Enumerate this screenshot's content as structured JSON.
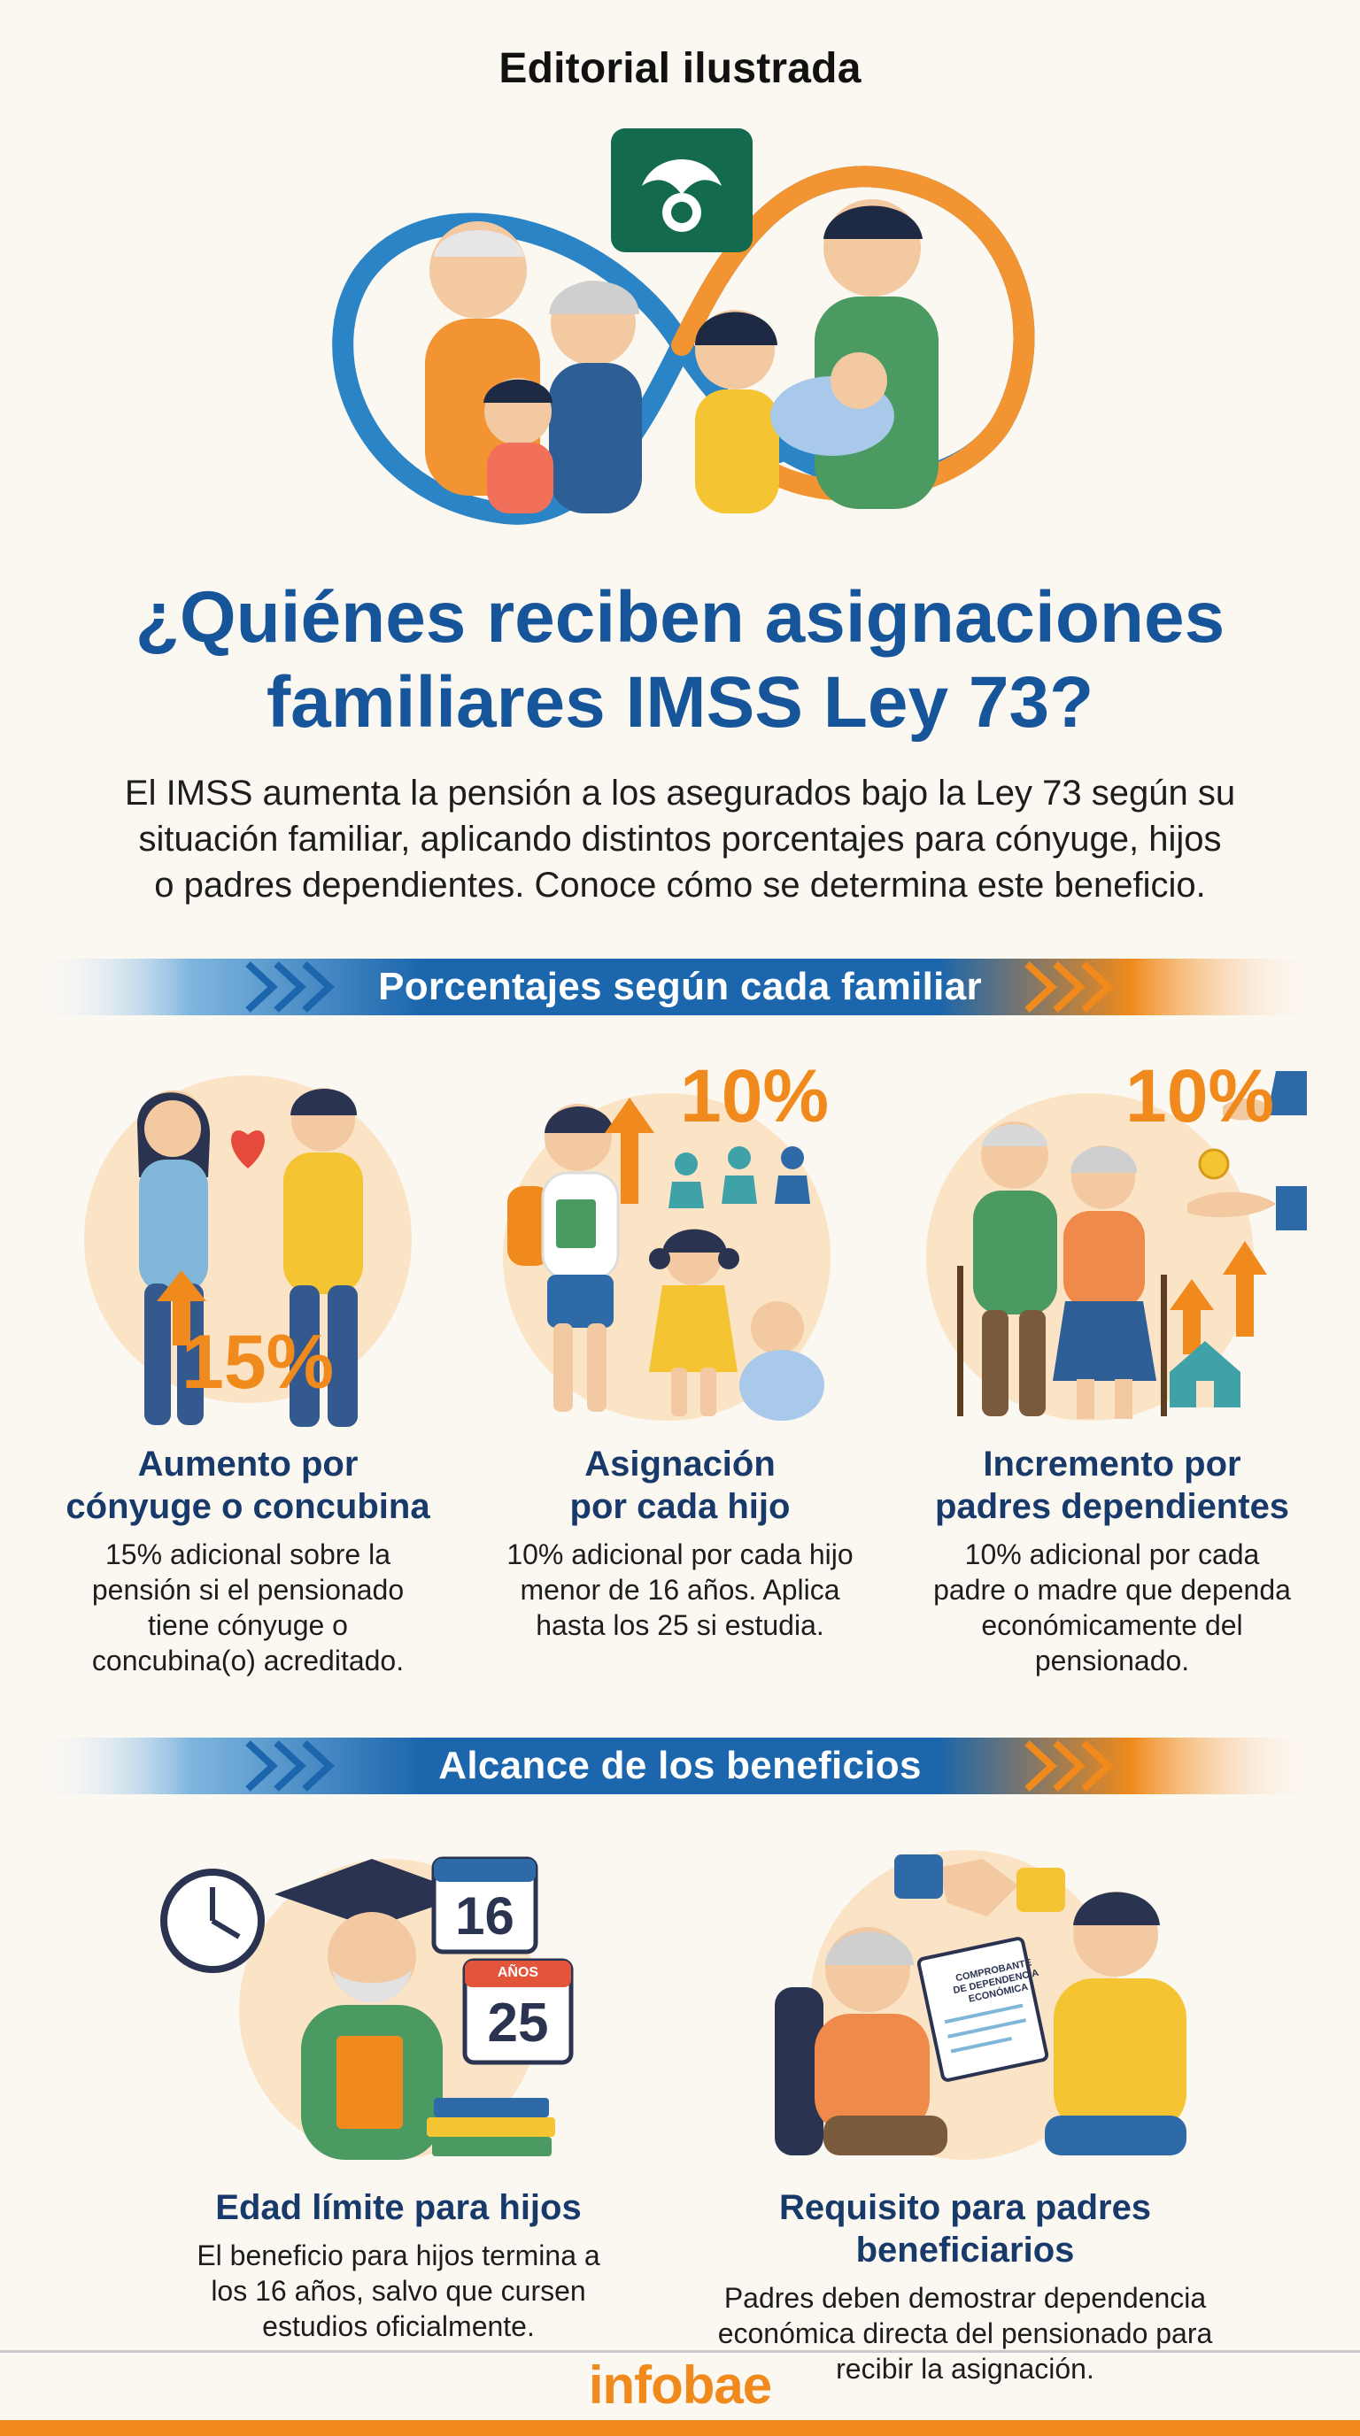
{
  "header": {
    "kicker": "Editorial ilustrada",
    "title_line1": "¿Quiénes reciben asignaciones",
    "title_line2": "familiares IMSS Ley 73?",
    "intro_line1": "El IMSS aumenta la pensión a los asegurados bajo la Ley 73 según su",
    "intro_line2": "situación familiar, aplicando distintos porcentajes para cónyuge, hijos",
    "intro_line3": "o padres dependientes. Conoce cómo se determina este beneficio."
  },
  "sections": {
    "percentages": "Porcentajes según cada familiar",
    "scope": "Alcance de los beneficios"
  },
  "cards": {
    "spouse": {
      "percent": "15%",
      "title_line1": "Aumento por",
      "title_line2": "cónyuge o concubina",
      "text_line1": "15% adicional sobre la",
      "text_line2": "pensión si el pensionado",
      "text_line3": "tiene cónyuge o",
      "text_line4": "concubina(o) acreditado."
    },
    "children": {
      "percent": "10%",
      "title_line1": "Asignación",
      "title_line2": "por cada hijo",
      "text_line1": "10% adicional por cada hijo",
      "text_line2": "menor de 16 años. Aplica",
      "text_line3": "hasta los 25 si estudia."
    },
    "parents": {
      "percent": "10%",
      "title_line1": "Incremento por",
      "title_line2": "padres dependientes",
      "text_line1": "10% adicional por cada",
      "text_line2": "padre o madre que dependa",
      "text_line3": "económicamente del",
      "text_line4": "pensionado."
    },
    "age_limit": {
      "calendar_1": "16",
      "calendar_2_label": "AÑOS",
      "calendar_2": "25",
      "title": "Edad límite para hijos",
      "text_line1": "El beneficio para hijos termina a",
      "text_line2": "los 16 años, salvo que cursen",
      "text_line3": "estudios oficialmente."
    },
    "parents_requirement": {
      "document_line1": "COMPROBANTE",
      "document_line2": "DE DEPENDENCIA",
      "document_line3": "ECONÓMICA",
      "title": "Requisito para padres beneficiarios",
      "text_line1": "Padres deben demostrar dependencia",
      "text_line2": "económica directa del pensionado para",
      "text_line3": "recibir la asignación."
    }
  },
  "footer": {
    "brand": "infobae"
  },
  "colors": {
    "blue": "#17559b",
    "navy": "#173a6b",
    "orange": "#f08a1c",
    "imss_green": "#136a4f"
  }
}
